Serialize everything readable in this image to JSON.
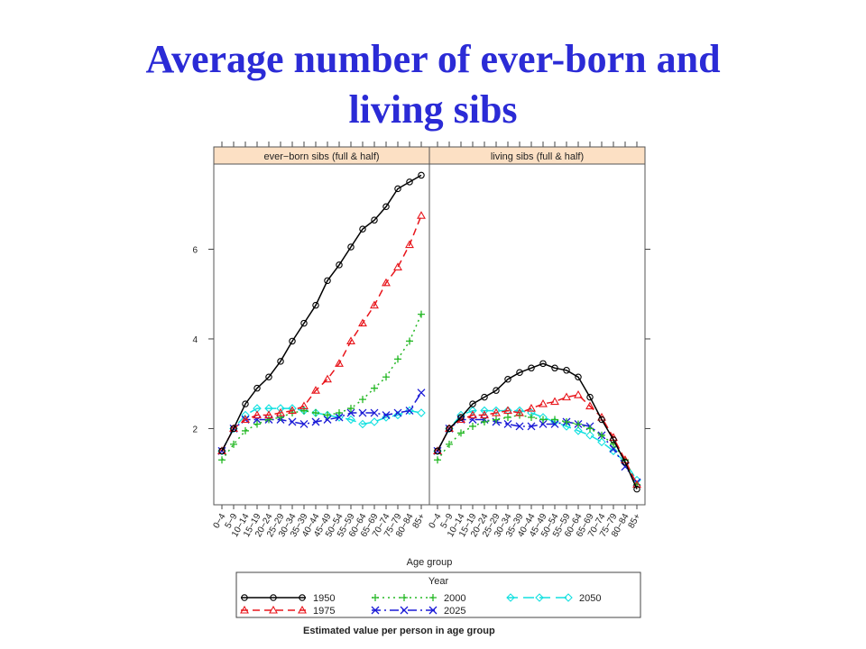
{
  "slide": {
    "title_line1": "Average number  of ever-born and",
    "title_line2": "living sibs"
  },
  "chart_data": {
    "type": "line",
    "panels": [
      {
        "strip_label": "ever−born sibs (full & half)",
        "key": "everborn"
      },
      {
        "strip_label": "living sibs (full & half)",
        "key": "living"
      }
    ],
    "xlabel": "Age group",
    "ylabel": "",
    "caption": "Estimated value per person in age group",
    "categories": [
      "0−4",
      "5−9",
      "10−14",
      "15−19",
      "20−24",
      "25−29",
      "30−34",
      "35−39",
      "40−44",
      "45−49",
      "50−54",
      "55−59",
      "60−64",
      "65−69",
      "70−74",
      "75−79",
      "80−84",
      "85+"
    ],
    "yticks": [
      2,
      4,
      6
    ],
    "ylim": [
      0.3,
      7.9
    ],
    "grid": false,
    "legend": {
      "title": "Year",
      "position": "bottom"
    },
    "strip_color": "#fce0c4",
    "series": [
      {
        "name": "1950",
        "color": "#000000",
        "marker": "circle",
        "dash": "",
        "everborn": [
          1.5,
          2.0,
          2.55,
          2.9,
          3.15,
          3.5,
          3.95,
          4.35,
          4.75,
          5.3,
          5.65,
          6.05,
          6.45,
          6.65,
          6.95,
          7.35,
          7.5,
          7.65
        ],
        "living": [
          1.5,
          2.0,
          2.25,
          2.55,
          2.7,
          2.85,
          3.1,
          3.25,
          3.35,
          3.45,
          3.35,
          3.3,
          3.15,
          2.7,
          2.2,
          1.75,
          1.25,
          0.65
        ]
      },
      {
        "name": "1975",
        "color": "#e8151b",
        "marker": "triangle",
        "dash": "8,5",
        "everborn": [
          1.5,
          2.0,
          2.2,
          2.3,
          2.3,
          2.35,
          2.4,
          2.5,
          2.85,
          3.1,
          3.45,
          3.95,
          4.35,
          4.75,
          5.25,
          5.6,
          6.1,
          6.75
        ],
        "living": [
          1.5,
          2.0,
          2.2,
          2.3,
          2.3,
          2.35,
          2.4,
          2.35,
          2.45,
          2.55,
          2.6,
          2.7,
          2.75,
          2.5,
          2.25,
          1.8,
          1.3,
          0.75
        ]
      },
      {
        "name": "2000",
        "color": "#25b825",
        "marker": "plus",
        "dash": "2,4",
        "everborn": [
          1.3,
          1.65,
          1.95,
          2.1,
          2.2,
          2.25,
          2.35,
          2.4,
          2.35,
          2.3,
          2.35,
          2.45,
          2.65,
          2.9,
          3.15,
          3.55,
          3.95,
          4.55
        ],
        "living": [
          1.3,
          1.65,
          1.9,
          2.05,
          2.15,
          2.2,
          2.25,
          2.3,
          2.25,
          2.2,
          2.2,
          2.15,
          2.1,
          2.0,
          1.85,
          1.65,
          1.3,
          0.75
        ]
      },
      {
        "name": "2025",
        "color": "#1a1ad6",
        "marker": "x",
        "dash": "10,4,2,4",
        "everborn": [
          1.5,
          2.0,
          2.2,
          2.2,
          2.2,
          2.2,
          2.15,
          2.1,
          2.15,
          2.2,
          2.25,
          2.35,
          2.35,
          2.35,
          2.3,
          2.35,
          2.4,
          2.8
        ],
        "living": [
          1.5,
          2.0,
          2.2,
          2.2,
          2.2,
          2.15,
          2.1,
          2.05,
          2.05,
          2.1,
          2.1,
          2.15,
          2.1,
          2.05,
          1.85,
          1.55,
          1.15,
          0.8
        ]
      },
      {
        "name": "2050",
        "color": "#12e0e0",
        "marker": "diamond",
        "dash": "12,6",
        "everborn": [
          1.5,
          2.0,
          2.3,
          2.45,
          2.45,
          2.45,
          2.45,
          2.4,
          2.35,
          2.3,
          2.25,
          2.2,
          2.1,
          2.15,
          2.25,
          2.3,
          2.4,
          2.35
        ],
        "living": [
          1.5,
          2.0,
          2.3,
          2.4,
          2.4,
          2.4,
          2.4,
          2.4,
          2.35,
          2.25,
          2.15,
          2.05,
          1.95,
          1.85,
          1.7,
          1.5,
          1.25,
          0.85
        ]
      }
    ]
  }
}
